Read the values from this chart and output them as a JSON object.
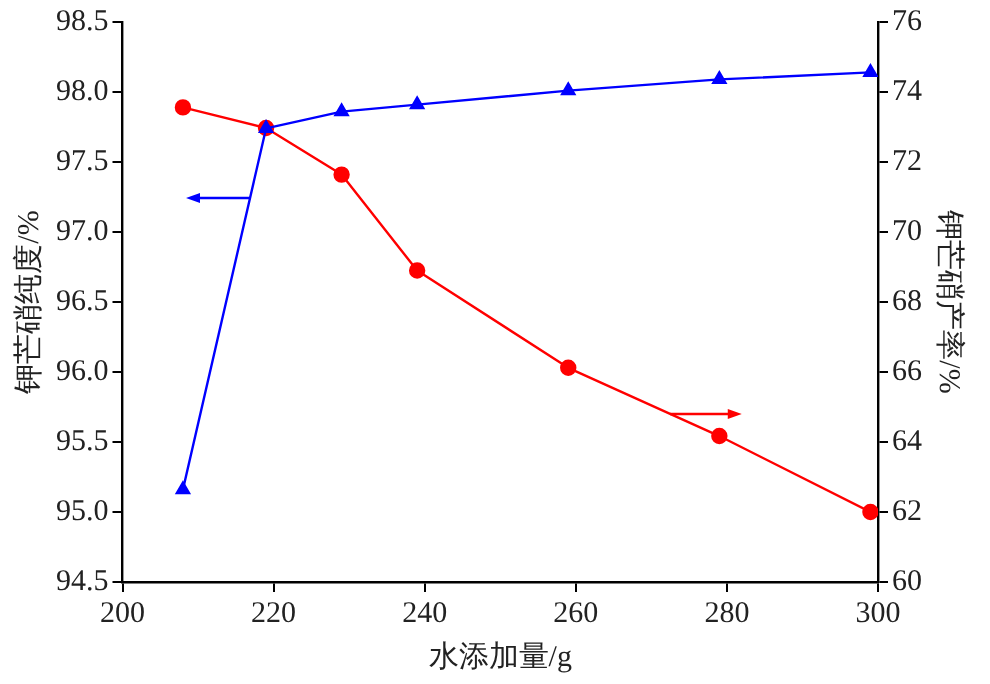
{
  "chart_data": {
    "type": "line",
    "xlabel": "水添加量/g",
    "ylabel": "钾芒硝纯度/%",
    "y2label": "钾芒硝产率/%",
    "x": [
      208,
      219,
      229,
      239,
      259,
      279,
      299
    ],
    "series": [
      {
        "color": "#0000ff",
        "marker": "triangle",
        "values": [
          95.16,
          97.74,
          97.86,
          97.91,
          98.01,
          98.09,
          98.14
        ]
      },
      {
        "color": "#ff0000",
        "marker": "circle",
        "axis": "y2",
        "values": [
          73.56,
          72.97,
          71.64,
          68.9,
          66.12,
          64.17,
          62.0
        ]
      }
    ],
    "xlim": [
      200,
      300
    ],
    "xticks": [
      200,
      220,
      240,
      260,
      280,
      300
    ],
    "ylim": [
      94.5,
      98.5
    ],
    "yticks": [
      {
        "value": 94.5,
        "label": "94.5"
      },
      {
        "value": 95,
        "label": "95.0"
      },
      {
        "value": 95.5,
        "label": "95.5"
      },
      {
        "value": 96,
        "label": "96.0"
      },
      {
        "value": 96.5,
        "label": "96.5"
      },
      {
        "value": 97,
        "label": "97.0"
      },
      {
        "value": 97.5,
        "label": "97.5"
      },
      {
        "value": 98,
        "label": "98.0"
      },
      {
        "value": 98.5,
        "label": "98.5"
      }
    ],
    "y2lim": [
      60,
      76
    ],
    "y2ticks": [
      60,
      62,
      64,
      66,
      68,
      70,
      72,
      74,
      76
    ],
    "grid": false,
    "legend": false
  }
}
